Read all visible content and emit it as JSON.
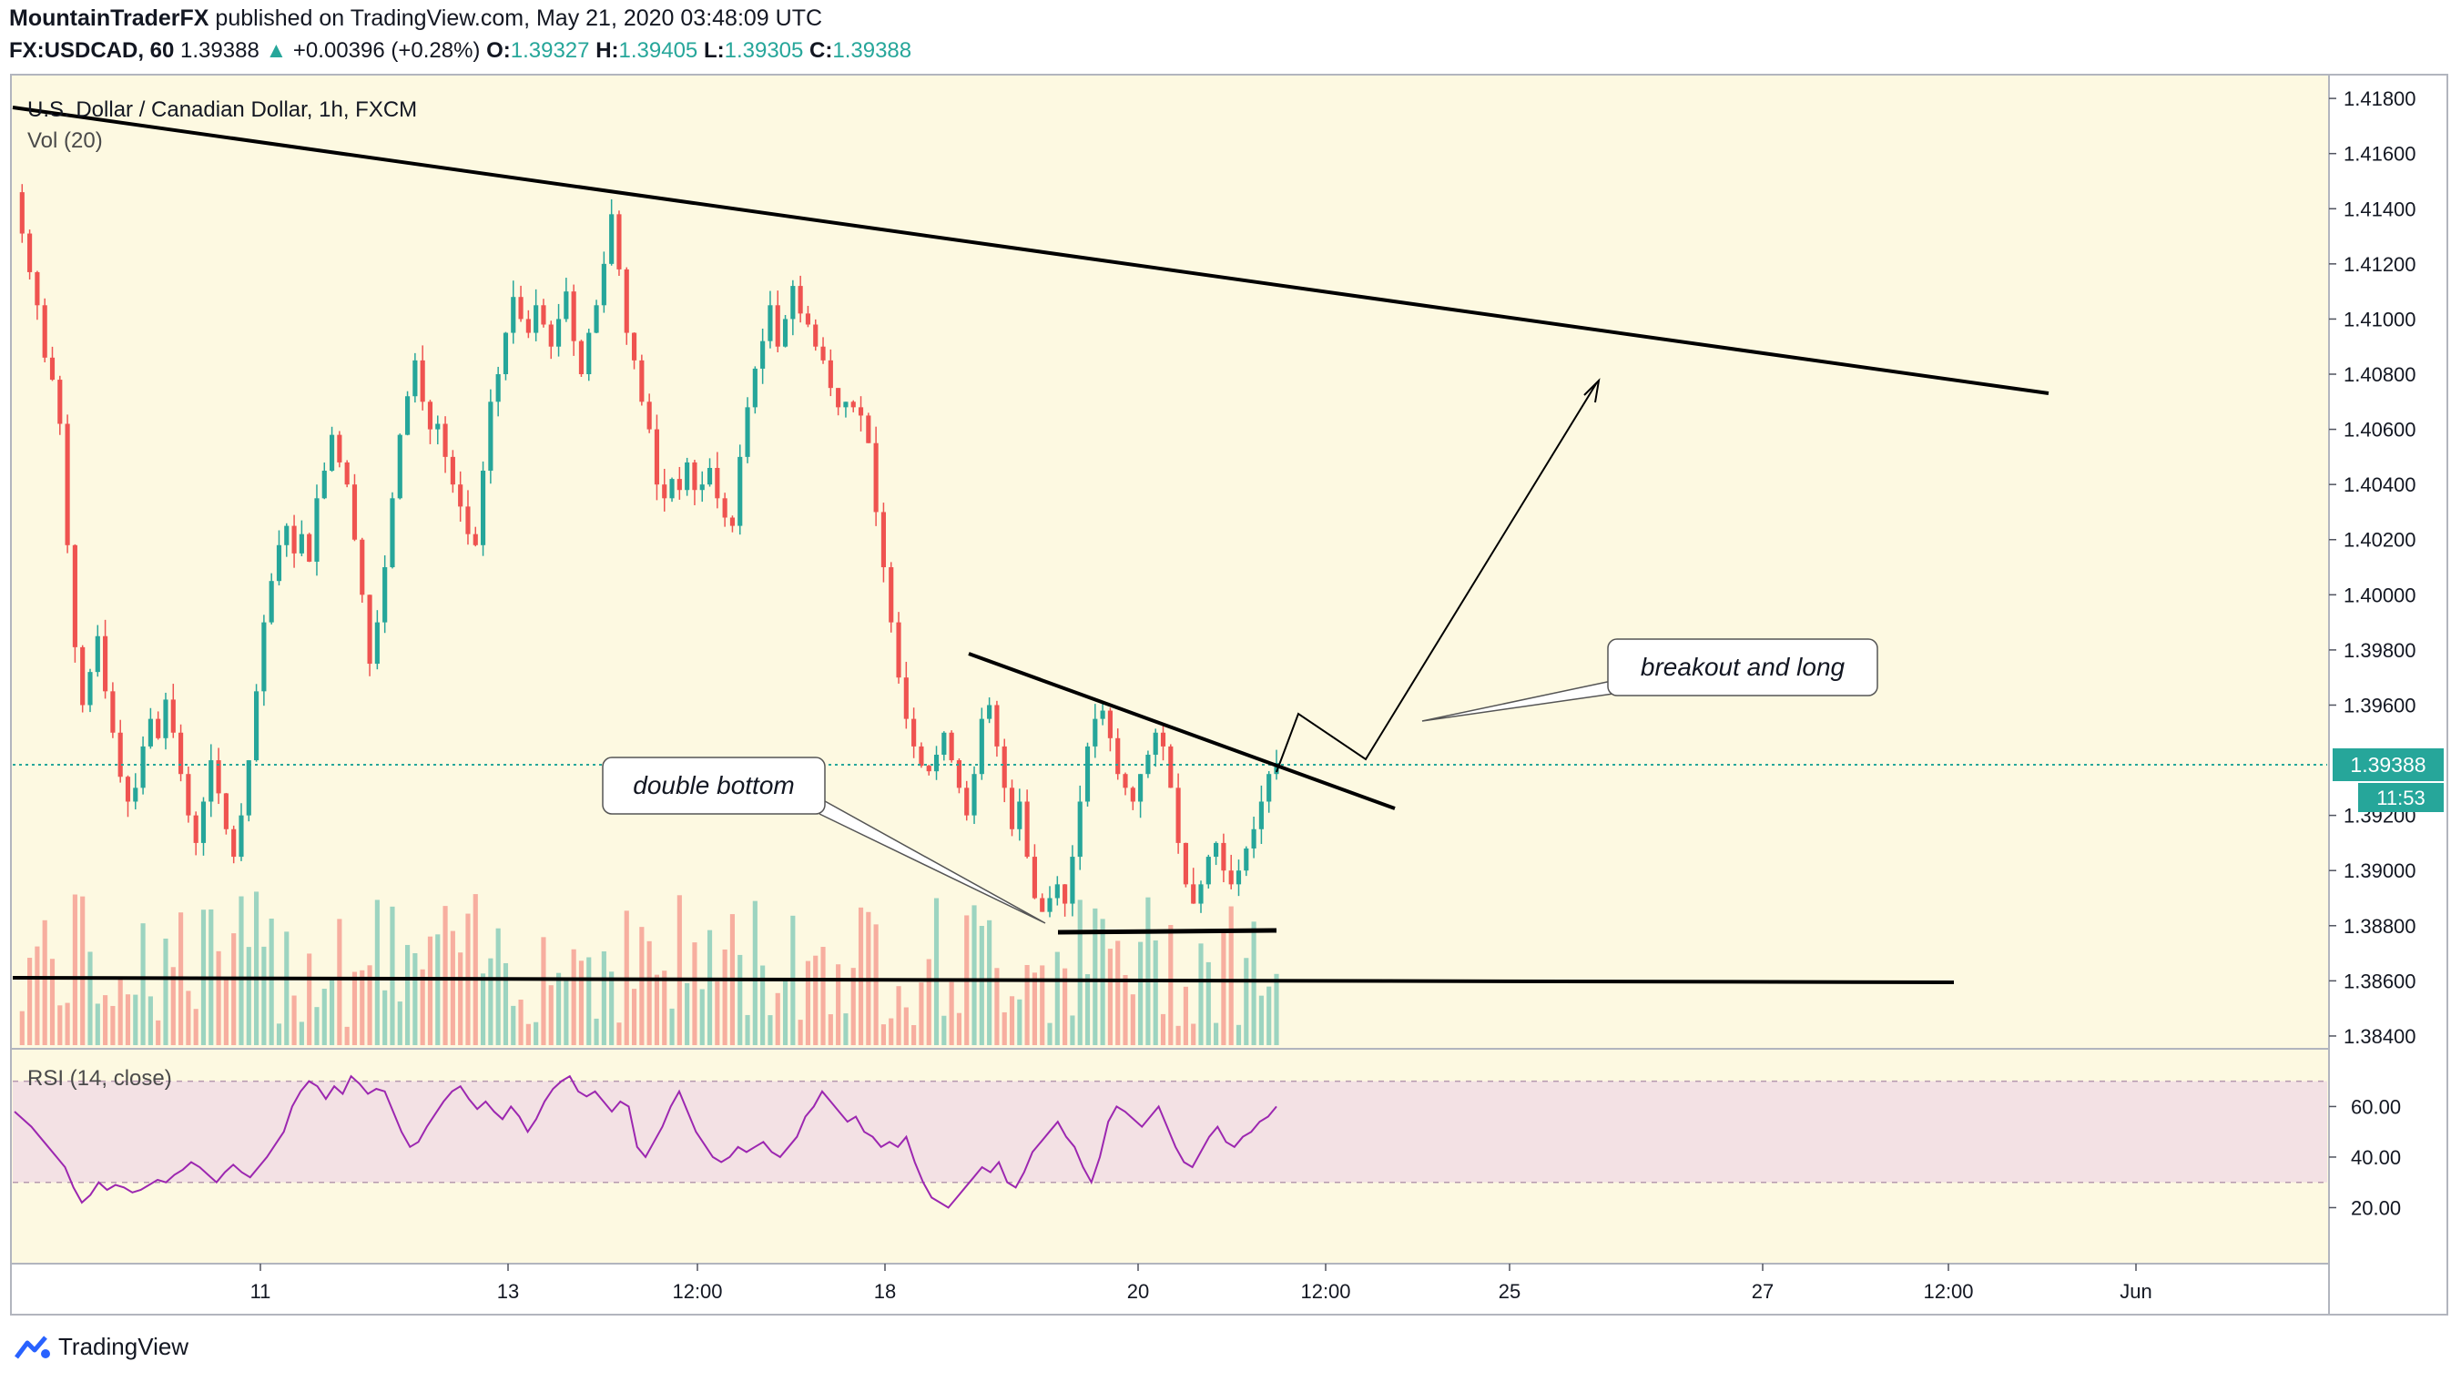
{
  "header": {
    "author": "MountainTraderFX",
    "published": "published on TradingView.com, May 21, 2020 03:48:09 UTC"
  },
  "ohlc": {
    "symbol": "FX:USDCAD, 60",
    "last": "1.39388",
    "arrow": "▲",
    "change": "+0.00396 (+0.28%)",
    "o_label": "O:",
    "o": "1.39327",
    "h_label": "H:",
    "h": "1.39405",
    "l_label": "L:",
    "l": "1.39305",
    "c_label": "C:",
    "c": "1.39388"
  },
  "chart_data": {
    "type": "candlestick",
    "title": "U.S. Dollar / Canadian Dollar, 1h, FXCM",
    "volume_label": "Vol (20)",
    "rsi_label": "RSI (14, close)",
    "price_axis": {
      "ticks": [
        "1.41800",
        "1.41600",
        "1.41400",
        "1.41200",
        "1.41000",
        "1.40800",
        "1.40600",
        "1.40400",
        "1.40200",
        "1.40000",
        "1.39800",
        "1.39600",
        "1.39200",
        "1.39000",
        "1.38800",
        "1.38600",
        "1.38400"
      ],
      "range": [
        1.3838,
        1.4184
      ]
    },
    "rsi_axis": {
      "ticks": [
        "60.00",
        "40.00",
        "20.00"
      ],
      "band": [
        30,
        70
      ]
    },
    "time_axis": {
      "ticks": [
        "11",
        "13",
        "12:00",
        "18",
        "20",
        "12:00",
        "25",
        "27",
        "12:00",
        "Jun"
      ]
    },
    "current_price": "1.39388",
    "countdown": "11:53",
    "up_color": "#26a69a",
    "down_color": "#ef5350",
    "background": "#fdf9e1",
    "rsi_band_color": "#f3e1e4",
    "rsi_line_color": "#9c27b0",
    "price_path": [
      1.4146,
      1.4131,
      1.4117,
      1.4105,
      1.4086,
      1.4078,
      1.4062,
      1.4018,
      1.3981,
      1.396,
      1.3972,
      1.3985,
      1.3965,
      1.395,
      1.3934,
      1.3925,
      1.393,
      1.3945,
      1.3955,
      1.3948,
      1.3962,
      1.395,
      1.3935,
      1.392,
      1.391,
      1.3925,
      1.394,
      1.3928,
      1.3915,
      1.3905,
      1.392,
      1.394,
      1.3965,
      1.399,
      1.4005,
      1.4018,
      1.4025,
      1.4015,
      1.4022,
      1.4012,
      1.4035,
      1.4045,
      1.4058,
      1.4048,
      1.404,
      1.402,
      1.4,
      1.3975,
      1.399,
      1.401,
      1.4035,
      1.4058,
      1.4072,
      1.4085,
      1.407,
      1.406,
      1.4062,
      1.405,
      1.404,
      1.4032,
      1.4022,
      1.4018,
      1.4045,
      1.407,
      1.408,
      1.4095,
      1.4108,
      1.41,
      1.4095,
      1.4105,
      1.4098,
      1.409,
      1.41,
      1.411,
      1.4092,
      1.408,
      1.4095,
      1.4105,
      1.412,
      1.4138,
      1.4118,
      1.4095,
      1.4085,
      1.407,
      1.406,
      1.404,
      1.4035,
      1.4042,
      1.4038,
      1.4048,
      1.4038,
      1.404,
      1.4046,
      1.4035,
      1.4028,
      1.4025,
      1.405,
      1.4068,
      1.4082,
      1.4092,
      1.4105,
      1.409,
      1.41,
      1.4112,
      1.4102,
      1.4098,
      1.409,
      1.4085,
      1.4075,
      1.4068,
      1.407,
      1.4068,
      1.4065,
      1.4055,
      1.403,
      1.401,
      1.399,
      1.397,
      1.3955,
      1.3945,
      1.3938,
      1.3936,
      1.3942,
      1.395,
      1.394,
      1.393,
      1.392,
      1.3935,
      1.3955,
      1.396,
      1.3945,
      1.393,
      1.3915,
      1.3925,
      1.3905,
      1.389,
      1.3885,
      1.389,
      1.3895,
      1.3888,
      1.3905,
      1.3925,
      1.3945,
      1.3955,
      1.3958,
      1.3948,
      1.3935,
      1.393,
      1.3925,
      1.3935,
      1.3942,
      1.395,
      1.3945,
      1.393,
      1.391,
      1.3895,
      1.3888,
      1.3895,
      1.3905,
      1.391,
      1.39,
      1.3895,
      1.39,
      1.3908,
      1.3915,
      1.3925,
      1.3935,
      1.3939
    ],
    "rsi_values": [
      58,
      55,
      52,
      48,
      44,
      40,
      36,
      28,
      22,
      25,
      30,
      27,
      29,
      28,
      26,
      27,
      29,
      31,
      30,
      33,
      35,
      38,
      36,
      33,
      30,
      34,
      37,
      34,
      32,
      36,
      40,
      45,
      50,
      60,
      66,
      70,
      68,
      63,
      68,
      65,
      72,
      69,
      65,
      67,
      66,
      58,
      50,
      44,
      46,
      52,
      57,
      62,
      66,
      68,
      63,
      59,
      62,
      58,
      55,
      60,
      56,
      50,
      55,
      62,
      67,
      70,
      72,
      66,
      64,
      66,
      62,
      58,
      62,
      60,
      44,
      40,
      46,
      52,
      60,
      66,
      58,
      50,
      45,
      40,
      38,
      40,
      44,
      42,
      44,
      46,
      42,
      40,
      44,
      48,
      56,
      60,
      66,
      62,
      58,
      54,
      56,
      50,
      48,
      44,
      46,
      44,
      48,
      38,
      30,
      24,
      22,
      20,
      24,
      28,
      32,
      36,
      34,
      38,
      30,
      28,
      34,
      42,
      46,
      50,
      54,
      48,
      44,
      36,
      30,
      40,
      54,
      60,
      58,
      55,
      52,
      56,
      60,
      52,
      44,
      38,
      36,
      42,
      48,
      52,
      46,
      44,
      48,
      50,
      54,
      56,
      60
    ],
    "annotations": {
      "double_bottom": "double bottom",
      "breakout": "breakout and long"
    }
  },
  "branding": {
    "name": "TradingView"
  }
}
